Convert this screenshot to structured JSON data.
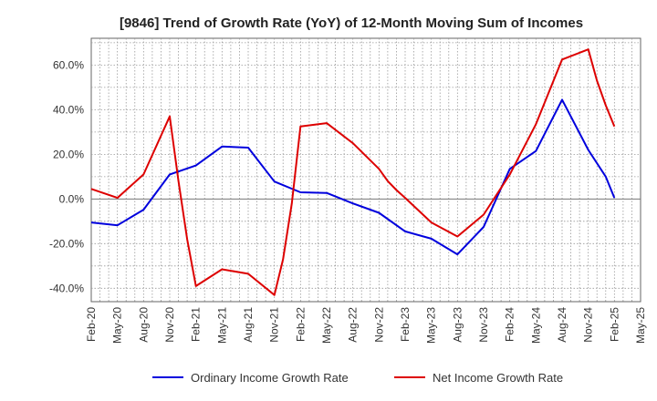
{
  "chart_data": {
    "type": "line",
    "title": "[9846]  Trend of Growth Rate (YoY) of 12-Month Moving Sum of Incomes",
    "xlabel": "",
    "ylabel": "",
    "x_tick_labels": [
      "Feb-20",
      "May-20",
      "Aug-20",
      "Nov-20",
      "Feb-21",
      "May-21",
      "Aug-21",
      "Nov-21",
      "Feb-22",
      "May-22",
      "Aug-22",
      "Nov-22",
      "Feb-23",
      "May-23",
      "Aug-23",
      "Nov-23",
      "Feb-24",
      "May-24",
      "Aug-24",
      "Nov-24",
      "Feb-25",
      "May-25"
    ],
    "y_ticks": [
      -40,
      -20,
      0,
      20,
      40,
      60
    ],
    "y_tick_labels": [
      "-40.0%",
      "-20.0%",
      "0.0%",
      "20.0%",
      "40.0%",
      "60.0%"
    ],
    "ylim": [
      -46,
      72
    ],
    "grid": true,
    "legend_position": "bottom",
    "series": [
      {
        "name": "Ordinary Income Growth Rate",
        "color": "#0000dd",
        "x_months": [
          0,
          3,
          6,
          9,
          12,
          15,
          18,
          21,
          24,
          27,
          30,
          33,
          36,
          39,
          42,
          45,
          48,
          51,
          54,
          57,
          59,
          60
        ],
        "values": [
          -10.5,
          -11.8,
          -4.8,
          11.0,
          15.0,
          23.5,
          23.0,
          7.8,
          3.0,
          2.7,
          -2.0,
          -6.2,
          -14.5,
          -17.8,
          -24.8,
          -12.5,
          13.5,
          21.5,
          44.5,
          22.0,
          10.0,
          0.5
        ]
      },
      {
        "name": "Net Income Growth Rate",
        "color": "#dd0000",
        "x_months": [
          0,
          3,
          6,
          9,
          10,
          11,
          12,
          15,
          18,
          21,
          22,
          23,
          24,
          27,
          30,
          33,
          34,
          35,
          36,
          39,
          42,
          45,
          48,
          51,
          54,
          57,
          58,
          59,
          60
        ],
        "values": [
          4.5,
          0.5,
          11.0,
          37.0,
          8.0,
          -18.0,
          -39.0,
          -31.5,
          -33.5,
          -43.0,
          -27.0,
          -2.0,
          32.5,
          34.0,
          25.0,
          13.5,
          8.0,
          4.0,
          0.5,
          -10.5,
          -16.8,
          -7.0,
          11.0,
          33.5,
          62.5,
          67.0,
          53.0,
          42.0,
          32.5
        ]
      }
    ],
    "xlim_months": [
      0,
      63
    ]
  }
}
